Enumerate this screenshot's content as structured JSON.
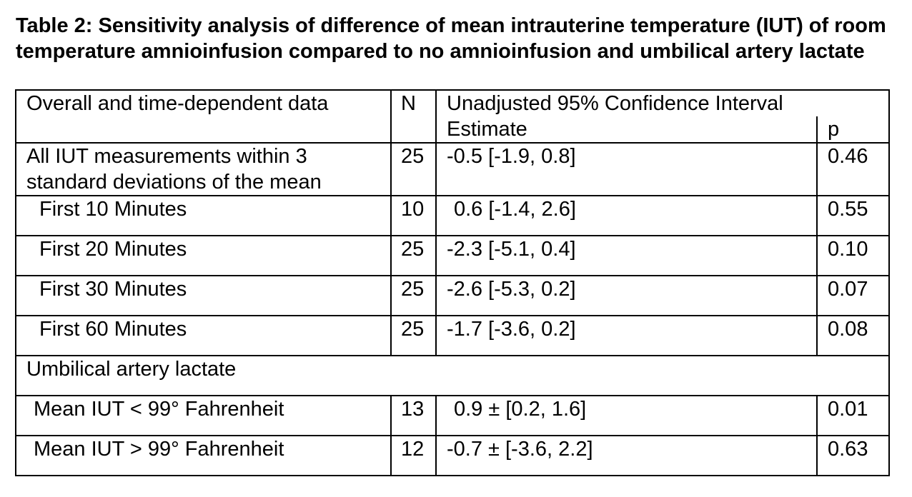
{
  "caption": "Table 2: Sensitivity analysis of difference of mean intrauterine temperature (IUT) of room temperature amnioinfusion compared to no amnioinfusion and umbilical artery lactate",
  "header": {
    "col1": "Overall and time-dependent data",
    "col2": "N",
    "col3": "Unadjusted 95% Confidence Interval",
    "sub_estimate": "Estimate",
    "sub_p": "p"
  },
  "rows": [
    {
      "label": "All IUT measurements within 3 standard deviations of the mean",
      "n": "25",
      "estimate": "-0.5 [-1.9, 0.8]",
      "p": "0.46"
    },
    {
      "label": "First 10 Minutes",
      "n": "10",
      "estimate": "0.6 [-1.4, 2.6]",
      "p": "0.55"
    },
    {
      "label": "First 20 Minutes",
      "n": "25",
      "estimate": "-2.3 [-5.1, 0.4]",
      "p": "0.10"
    },
    {
      "label": "First 30 Minutes",
      "n": "25",
      "estimate": "-2.6 [-5.3, 0.2]",
      "p": "0.07"
    },
    {
      "label": "First 60 Minutes",
      "n": "25",
      "estimate": "-1.7 [-3.6, 0.2]",
      "p": "0.08"
    }
  ],
  "section": {
    "title": "Umbilical artery lactate",
    "rows": [
      {
        "label": "Mean IUT < 99° Fahrenheit",
        "n": "13",
        "estimate": "0.9 ± [0.2, 1.6]",
        "p": "0.01",
        "p_bold": true
      },
      {
        "label": "Mean IUT > 99° Fahrenheit",
        "n": "12",
        "estimate": "-0.7 ± [-3.6, 2.2]",
        "p": "0.63",
        "p_bold": false
      }
    ]
  }
}
